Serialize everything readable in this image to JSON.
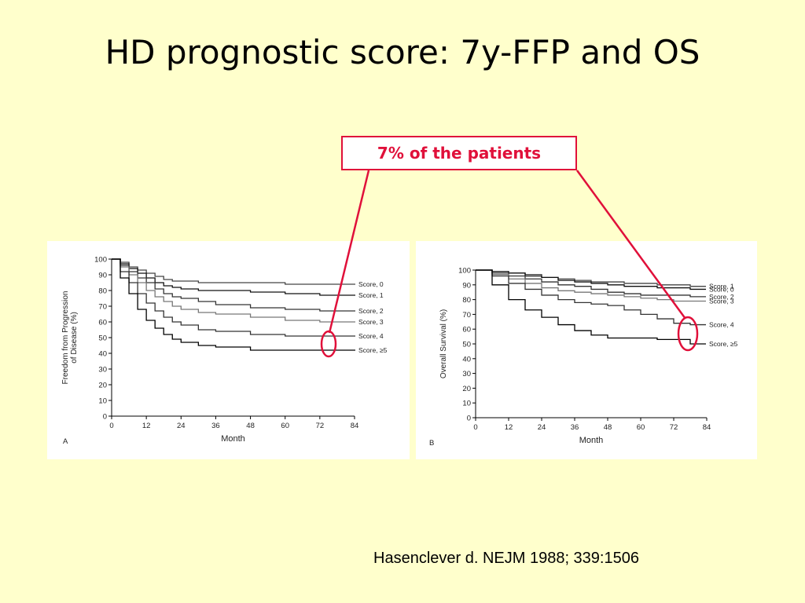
{
  "slide": {
    "title": "HD prognostic score: 7y-FFP and OS",
    "callout": "7% of the patients",
    "citation": "Hasenclever d. NEJM 1988; 339:1506",
    "accent_color": "#E0103A",
    "background_color": "#FFFFCC"
  },
  "chart_data": [
    {
      "type": "line",
      "step": true,
      "panel_label": "A",
      "xlabel": "Month",
      "ylabel": "Freedom from Progression of Disease (%)",
      "xlim": [
        0,
        84
      ],
      "ylim": [
        0,
        100
      ],
      "xticks": [
        0,
        12,
        24,
        36,
        48,
        60,
        72,
        84
      ],
      "yticks": [
        0,
        10,
        20,
        30,
        40,
        50,
        60,
        70,
        80,
        90,
        100
      ],
      "grid": false,
      "series": [
        {
          "name": "Score, 0",
          "x": [
            0,
            3,
            6,
            9,
            12,
            15,
            18,
            21,
            24,
            30,
            36,
            48,
            60,
            72,
            78
          ],
          "y": [
            100,
            98,
            95,
            93,
            91,
            89,
            87,
            86,
            86,
            85,
            85,
            85,
            84,
            84,
            84
          ]
        },
        {
          "name": "Score, 1",
          "x": [
            0,
            3,
            6,
            9,
            12,
            15,
            18,
            21,
            24,
            30,
            36,
            48,
            60,
            72,
            78
          ],
          "y": [
            100,
            97,
            94,
            91,
            88,
            85,
            83,
            82,
            81,
            80,
            80,
            79,
            78,
            77,
            77
          ]
        },
        {
          "name": "Score, 2",
          "x": [
            0,
            3,
            6,
            9,
            12,
            15,
            18,
            21,
            24,
            30,
            36,
            48,
            60,
            72,
            78
          ],
          "y": [
            100,
            96,
            92,
            88,
            85,
            81,
            78,
            76,
            75,
            73,
            71,
            69,
            68,
            67,
            67
          ]
        },
        {
          "name": "Score, 3",
          "x": [
            0,
            3,
            6,
            9,
            12,
            15,
            18,
            21,
            24,
            30,
            36,
            48,
            60,
            72,
            78
          ],
          "y": [
            100,
            95,
            90,
            85,
            80,
            76,
            73,
            70,
            68,
            66,
            65,
            63,
            61,
            60,
            60
          ]
        },
        {
          "name": "Score, 4",
          "x": [
            0,
            3,
            6,
            9,
            12,
            15,
            18,
            21,
            24,
            30,
            36,
            48,
            60,
            72,
            78
          ],
          "y": [
            100,
            92,
            85,
            78,
            72,
            67,
            63,
            60,
            58,
            55,
            54,
            52,
            51,
            51,
            51
          ]
        },
        {
          "name": "Score, ≥5",
          "x": [
            0,
            3,
            6,
            9,
            12,
            15,
            18,
            21,
            24,
            30,
            36,
            48,
            60,
            72,
            78
          ],
          "y": [
            100,
            88,
            78,
            68,
            61,
            56,
            52,
            49,
            47,
            45,
            44,
            42,
            42,
            42,
            42
          ]
        }
      ]
    },
    {
      "type": "line",
      "step": true,
      "panel_label": "B",
      "xlabel": "Month",
      "ylabel": "Overall Survival (%)",
      "xlim": [
        0,
        84
      ],
      "ylim": [
        0,
        100
      ],
      "xticks": [
        0,
        12,
        24,
        36,
        48,
        60,
        72,
        84
      ],
      "yticks": [
        0,
        10,
        20,
        30,
        40,
        50,
        60,
        70,
        80,
        90,
        100
      ],
      "grid": false,
      "series": [
        {
          "name": "Score, 1",
          "x": [
            0,
            6,
            12,
            18,
            24,
            30,
            36,
            42,
            48,
            54,
            60,
            66,
            72,
            78,
            82
          ],
          "y": [
            100,
            99,
            98,
            97,
            95,
            94,
            93,
            92,
            92,
            91,
            91,
            90,
            90,
            89,
            89
          ]
        },
        {
          "name": "Score, 0",
          "x": [
            0,
            6,
            12,
            18,
            24,
            30,
            36,
            42,
            48,
            54,
            60,
            66,
            72,
            78,
            82
          ],
          "y": [
            100,
            99,
            98,
            96,
            95,
            93,
            92,
            91,
            90,
            89,
            89,
            88,
            88,
            87,
            87
          ]
        },
        {
          "name": "Score, 2",
          "x": [
            0,
            6,
            12,
            18,
            24,
            30,
            36,
            42,
            48,
            54,
            60,
            66,
            72,
            78,
            82
          ],
          "y": [
            100,
            98,
            96,
            94,
            92,
            90,
            89,
            87,
            85,
            84,
            83,
            83,
            83,
            82,
            82
          ]
        },
        {
          "name": "Score, 3",
          "x": [
            0,
            6,
            12,
            18,
            24,
            30,
            36,
            42,
            48,
            54,
            60,
            66,
            72,
            78,
            82
          ],
          "y": [
            100,
            97,
            94,
            91,
            88,
            86,
            85,
            84,
            83,
            82,
            81,
            80,
            79,
            79,
            79
          ]
        },
        {
          "name": "Score, 4",
          "x": [
            0,
            6,
            12,
            18,
            24,
            30,
            36,
            42,
            48,
            54,
            60,
            66,
            72,
            78,
            82
          ],
          "y": [
            100,
            96,
            91,
            87,
            83,
            80,
            78,
            77,
            76,
            73,
            70,
            67,
            64,
            63,
            63
          ]
        },
        {
          "name": "Score, ≥5",
          "x": [
            0,
            6,
            12,
            18,
            24,
            30,
            36,
            42,
            48,
            54,
            60,
            66,
            72,
            78,
            82
          ],
          "y": [
            100,
            90,
            80,
            73,
            68,
            63,
            59,
            56,
            54,
            54,
            54,
            53,
            53,
            50,
            50
          ]
        }
      ]
    }
  ]
}
